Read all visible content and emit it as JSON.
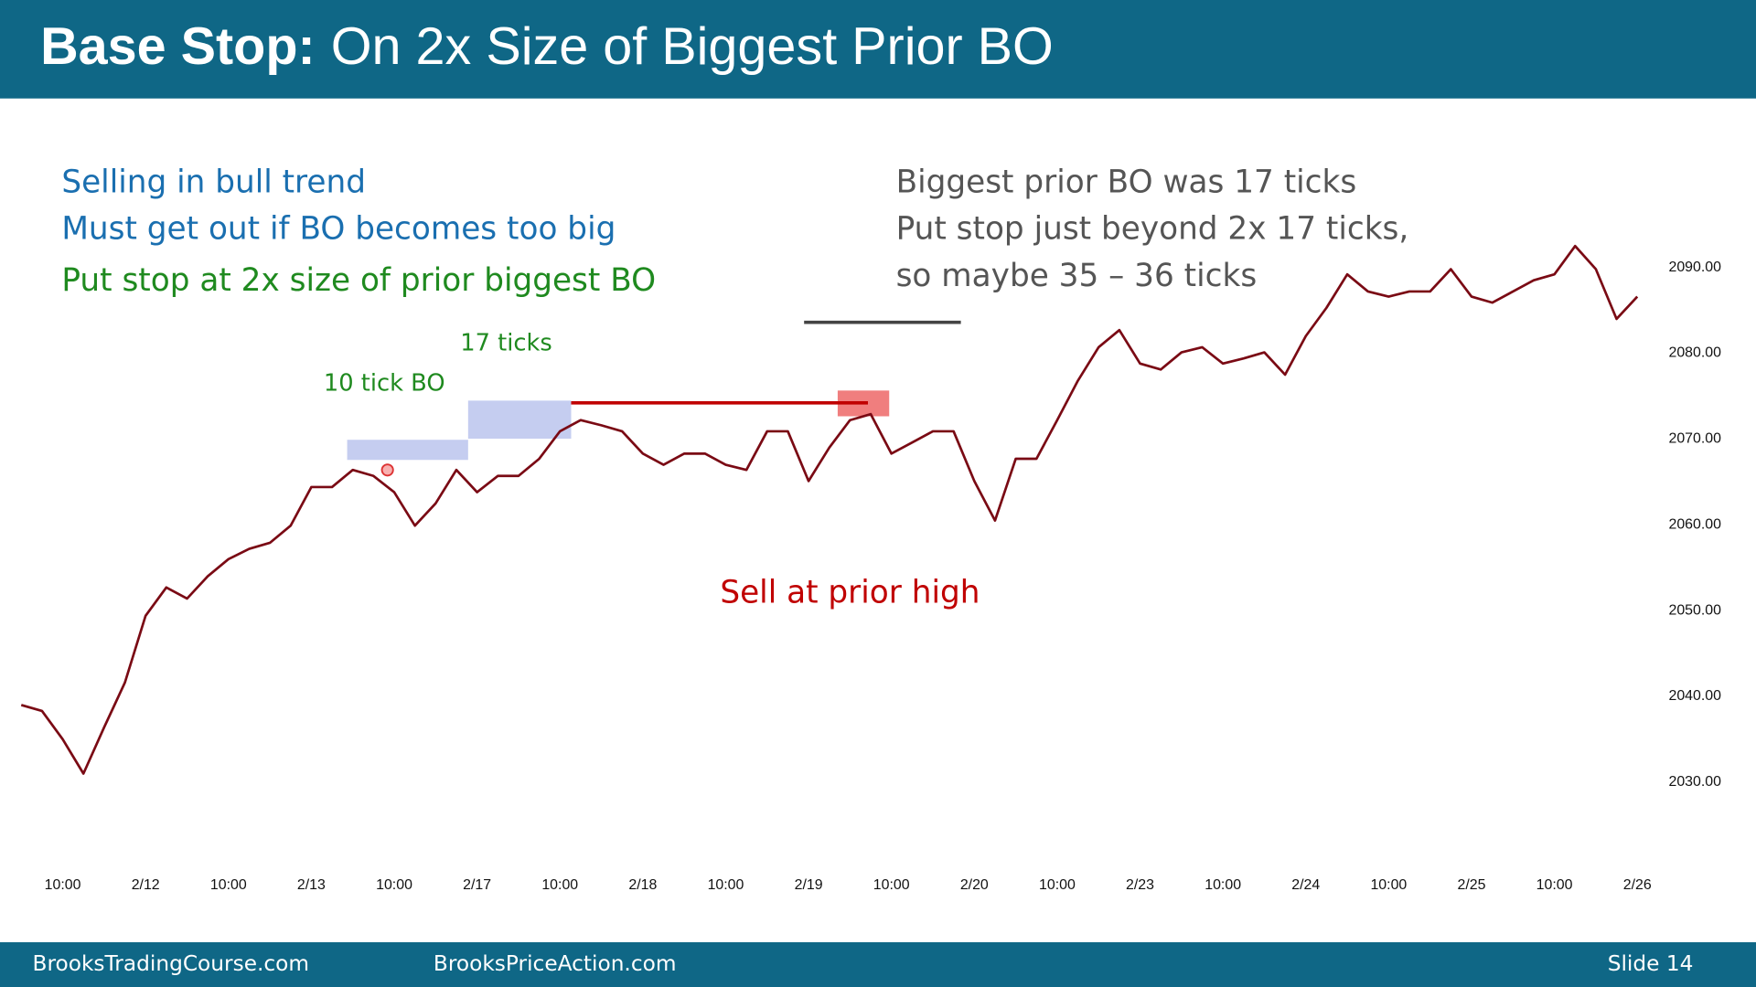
{
  "slide": {
    "title_bold": "Base Stop:",
    "title_rest": "On 2x Size of Biggest Prior BO",
    "left_notes": [
      "Selling in bull trend",
      "Must get out if BO becomes too big",
      "Put stop at 2x size of prior biggest BO"
    ],
    "right_notes": [
      "Biggest prior BO was 17 ticks",
      "Put stop just beyond 2x 17 ticks,",
      "so maybe 35 – 36 ticks"
    ],
    "footer_left": "BrooksTradingCourse.com",
    "footer_mid": "BrooksPriceAction.com",
    "footer_right": "Slide  14"
  },
  "chart_data": {
    "type": "line",
    "annotations": [
      "17 ticks",
      "10 tick BO",
      "Sell at prior high"
    ],
    "categories": [
      null,
      null,
      "10:00",
      null,
      null,
      null,
      "2/12",
      null,
      null,
      null,
      "10:00",
      null,
      null,
      null,
      "2/13",
      null,
      null,
      null,
      "10:00",
      null,
      null,
      null,
      "2/17",
      null,
      null,
      null,
      "10:00",
      null,
      null,
      null,
      "2/18",
      null,
      null,
      null,
      "10:00",
      null,
      null,
      null,
      "2/19",
      null,
      null,
      null,
      "10:00",
      null,
      null,
      null,
      "2/20",
      null,
      null,
      null,
      "10:00",
      null,
      null,
      null,
      "2/23",
      null,
      null,
      null,
      "10:00",
      null,
      null,
      null,
      "2/24",
      null,
      null,
      null,
      "10:00",
      null,
      null,
      null,
      "2/25",
      null,
      null,
      null,
      "10:00",
      null,
      null,
      null,
      "2/26"
    ],
    "values": [
      2039,
      2038.3,
      2035,
      2031,
      2036.4,
      2041.6,
      2049.4,
      2052.7,
      2051.4,
      2054,
      2056,
      2057.2,
      2057.9,
      2059.9,
      2064.4,
      2064.4,
      2066.4,
      2065.7,
      2063.8,
      2059.9,
      2062.5,
      2066.4,
      2063.8,
      2065.7,
      2065.7,
      2067.7,
      2070.9,
      2072.2,
      2071.6,
      2070.9,
      2068.3,
      2067,
      2068.3,
      2068.3,
      2067,
      2066.4,
      2070.9,
      2070.9,
      2065.1,
      2069,
      2072.2,
      2072.9,
      2068.3,
      2069.6,
      2070.9,
      2070.9,
      2065.1,
      2060.5,
      2067.7,
      2067.7,
      2072.2,
      2076.8,
      2080.7,
      2082.7,
      2078.8,
      2078.1,
      2080.1,
      2080.7,
      2078.8,
      2079.4,
      2080.1,
      2077.5,
      2082,
      2085.3,
      2089.2,
      2087.2,
      2086.6,
      2087.2,
      2087.2,
      2089.8,
      2086.6,
      2085.9,
      2087.2,
      2088.5,
      2089.2,
      2092.5,
      2089.8,
      2084,
      2086.6
    ],
    "color": "#7a0a14",
    "ylim": [
      2019,
      2108
    ],
    "yticks": [
      {
        "value": 2030,
        "label": "2030.00"
      },
      {
        "value": 2040,
        "label": "2040.00"
      },
      {
        "value": 2050,
        "label": "2050.00"
      },
      {
        "value": 2060,
        "label": "2060.00"
      },
      {
        "value": 2070,
        "label": "2070.00"
      },
      {
        "value": 2080,
        "label": "2080.00"
      },
      {
        "value": 2090,
        "label": "2090.00"
      }
    ]
  }
}
